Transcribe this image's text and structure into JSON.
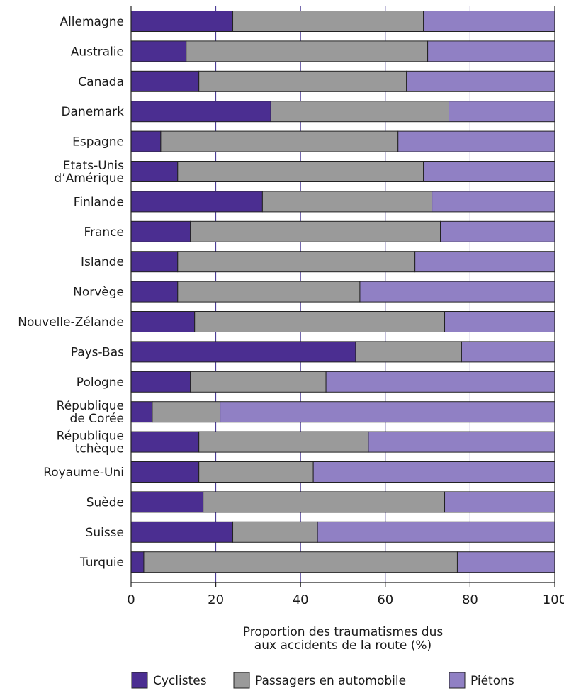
{
  "chart_data": {
    "type": "bar",
    "orientation": "horizontal",
    "stacked": true,
    "categories": [
      [
        "Allemagne"
      ],
      [
        "Australie"
      ],
      [
        "Canada"
      ],
      [
        "Danemark"
      ],
      [
        "Espagne"
      ],
      [
        "Etats-Unis",
        "d’Amérique"
      ],
      [
        "Finlande"
      ],
      [
        "France"
      ],
      [
        "Islande"
      ],
      [
        "Norvège"
      ],
      [
        "Nouvelle-Zélande"
      ],
      [
        "Pays-Bas"
      ],
      [
        "Pologne"
      ],
      [
        "République",
        "de Corée"
      ],
      [
        "République",
        "tchèque"
      ],
      [
        "Royaume-Uni"
      ],
      [
        "Suède"
      ],
      [
        "Suisse"
      ],
      [
        "Turquie"
      ]
    ],
    "series": [
      {
        "name": "Cyclistes",
        "color": "#4b2e91",
        "values": [
          24,
          13,
          16,
          33,
          7,
          11,
          31,
          14,
          11,
          11,
          15,
          53,
          14,
          5,
          16,
          16,
          17,
          24,
          3
        ]
      },
      {
        "name": "Passagers en automobile",
        "color": "#9a9a9a",
        "values": [
          45,
          57,
          49,
          42,
          56,
          58,
          40,
          59,
          56,
          43,
          59,
          25,
          32,
          16,
          40,
          27,
          57,
          20,
          74
        ]
      },
      {
        "name": "Piétons",
        "color": "#9080c4",
        "values": [
          31,
          30,
          35,
          25,
          37,
          31,
          29,
          27,
          33,
          46,
          26,
          22,
          54,
          79,
          44,
          57,
          26,
          56,
          23
        ]
      }
    ],
    "x_ticks": [
      "0",
      "20",
      "40",
      "60",
      "80",
      "100"
    ],
    "xlim": [
      0,
      100
    ],
    "xlabel_lines": [
      "Proportion des traumatismes dus",
      "aux accidents de la route (%)"
    ],
    "grid": true,
    "legend_position": "bottom"
  }
}
